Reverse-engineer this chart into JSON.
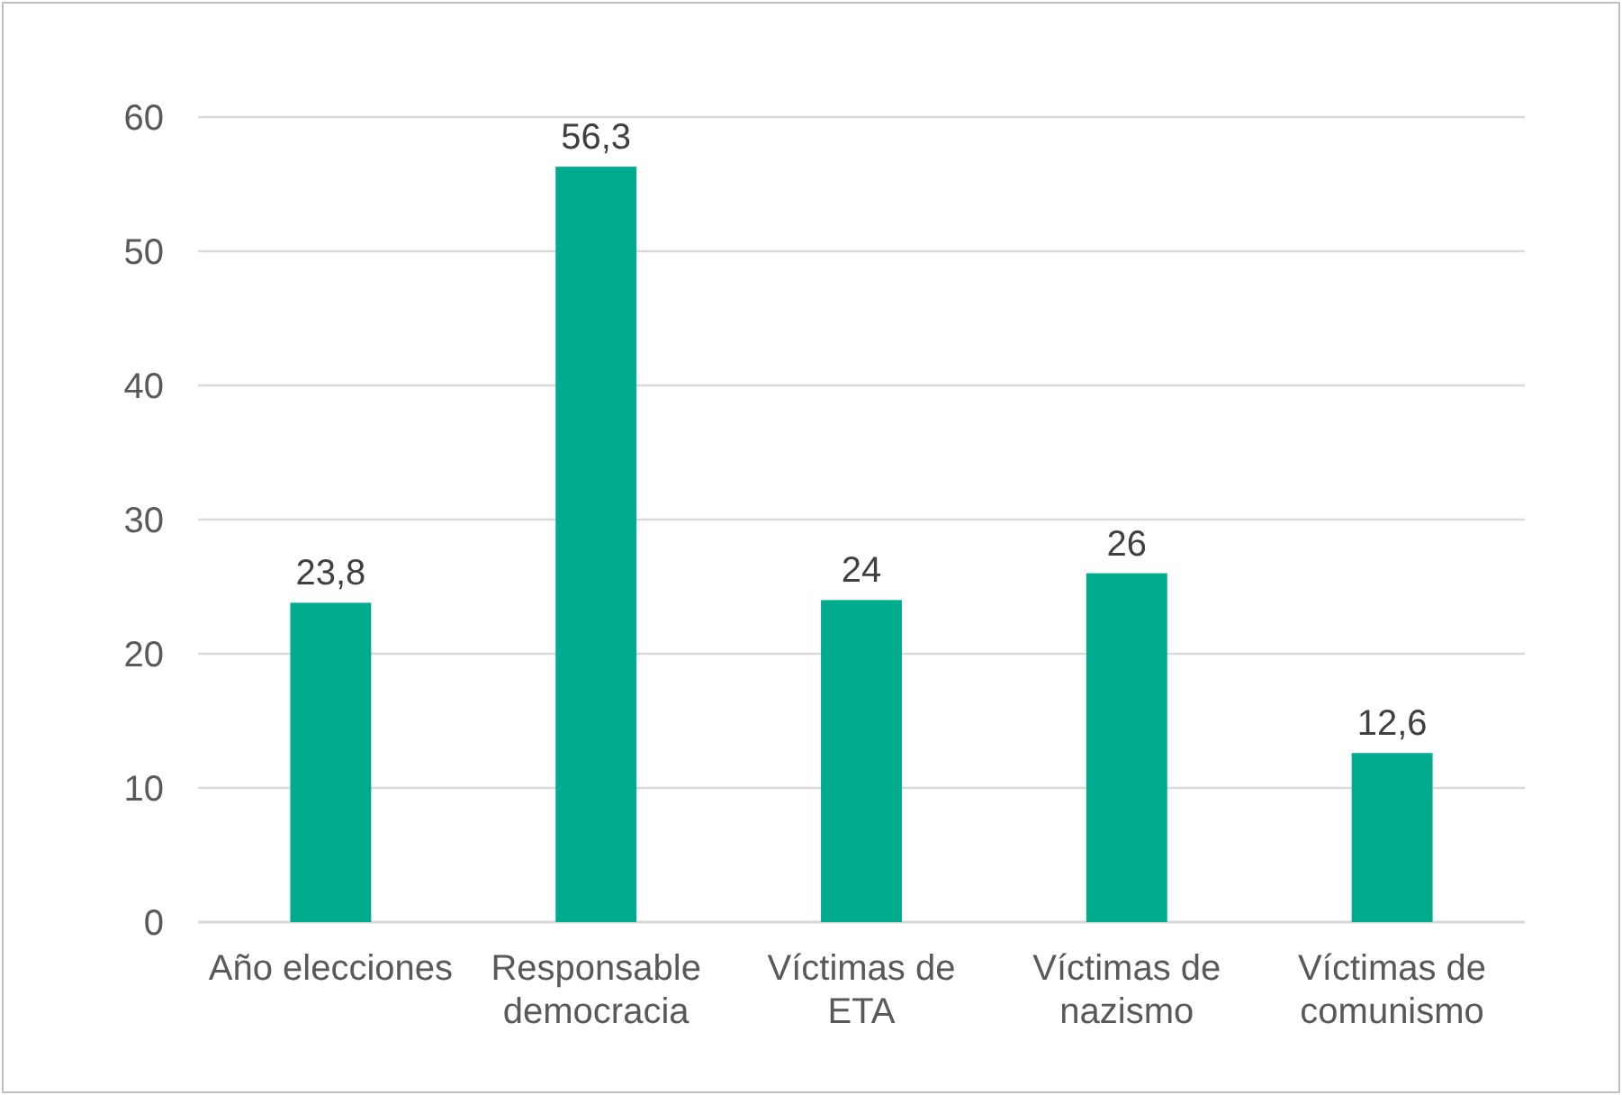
{
  "chart_data": {
    "type": "bar",
    "categories": [
      "Año elecciones",
      "Responsable democracia",
      "Víctimas de ETA",
      "Víctimas de nazismo",
      "Víctimas de comunismo"
    ],
    "values": [
      23.8,
      56.3,
      24,
      26,
      12.6
    ],
    "color": "#00ab8e",
    "value_labels": [
      "23,8",
      "56,3",
      "24",
      "26",
      "12,6"
    ],
    "ylim": [
      0,
      60
    ],
    "yticks": [
      0,
      10,
      20,
      30,
      40,
      50,
      60
    ],
    "grid": "y"
  }
}
